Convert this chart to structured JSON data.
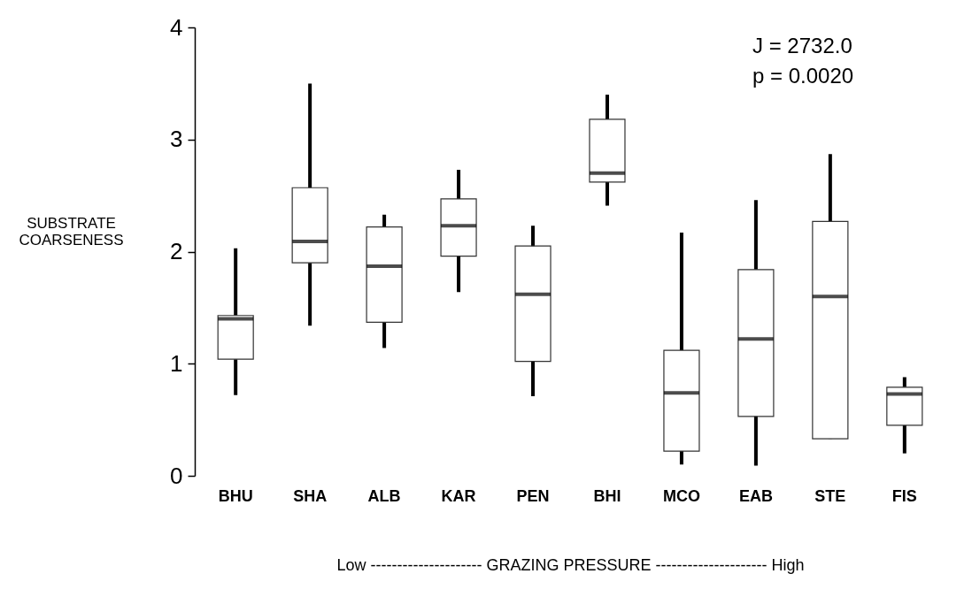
{
  "chart_data": {
    "type": "box",
    "xlabel": "Low --------------------- GRAZING PRESSURE --------------------- High",
    "ylabel": "SUBSTRATE COARSENESS",
    "categories": [
      "BHU",
      "SHA",
      "ALB",
      "KAR",
      "PEN",
      "BHI",
      "MCO",
      "EAB",
      "STE",
      "FIS"
    ],
    "boxes": [
      {
        "low": 0.72,
        "q1": 1.04,
        "median": 1.4,
        "q3": 1.43,
        "high": 2.03
      },
      {
        "low": 1.34,
        "q1": 1.9,
        "median": 2.09,
        "q3": 2.57,
        "high": 3.5
      },
      {
        "low": 1.14,
        "q1": 1.37,
        "median": 1.87,
        "q3": 2.22,
        "high": 2.33
      },
      {
        "low": 1.64,
        "q1": 1.96,
        "median": 2.23,
        "q3": 2.47,
        "high": 2.73
      },
      {
        "low": 0.71,
        "q1": 1.02,
        "median": 1.62,
        "q3": 2.05,
        "high": 2.23
      },
      {
        "low": 2.41,
        "q1": 2.62,
        "median": 2.7,
        "q3": 3.18,
        "high": 3.4
      },
      {
        "low": 0.1,
        "q1": 0.22,
        "median": 0.74,
        "q3": 1.12,
        "high": 2.17
      },
      {
        "low": 0.09,
        "q1": 0.53,
        "median": 1.22,
        "q3": 1.84,
        "high": 2.46
      },
      {
        "low": 0.33,
        "q1": 0.33,
        "median": 1.6,
        "q3": 2.27,
        "high": 2.87
      },
      {
        "low": 0.2,
        "q1": 0.45,
        "median": 0.73,
        "q3": 0.79,
        "high": 0.88
      }
    ],
    "ylim": [
      0,
      4
    ],
    "yticks": [
      0,
      1,
      2,
      3,
      4
    ],
    "grid": false,
    "annotations": [
      "J = 2732.0",
      "p = 0.0020"
    ]
  }
}
